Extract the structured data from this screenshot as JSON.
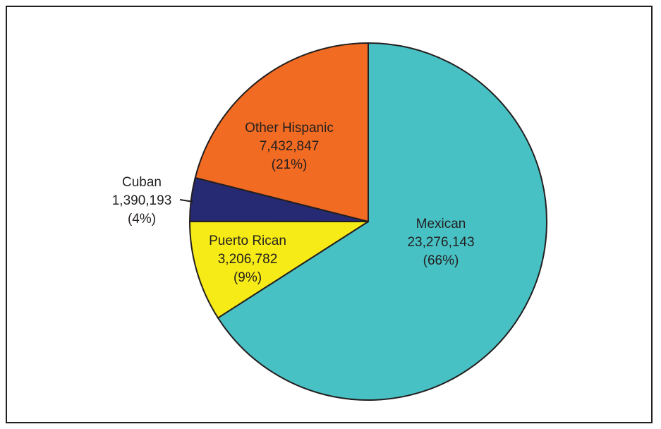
{
  "chart_data": {
    "type": "pie",
    "title": "",
    "start_angle_deg": 0,
    "direction": "clockwise",
    "slices": [
      {
        "name": "Mexican",
        "value": 23276143,
        "value_label": "23,276,143",
        "percent_label": "(66%)",
        "color": "#48c1c4"
      },
      {
        "name": "Puerto Rican",
        "value": 3206782,
        "value_label": "3,206,782",
        "percent_label": "(9%)",
        "color": "#f6eb16"
      },
      {
        "name": "Cuban",
        "value": 1390193,
        "value_label": "1,390,193",
        "percent_label": "(4%)",
        "color": "#262a73"
      },
      {
        "name": "Other Hispanic",
        "value": 7432847,
        "value_label": "7,432,847",
        "percent_label": "(21%)",
        "color": "#f26b22"
      }
    ],
    "stroke_color": "#231f20"
  }
}
